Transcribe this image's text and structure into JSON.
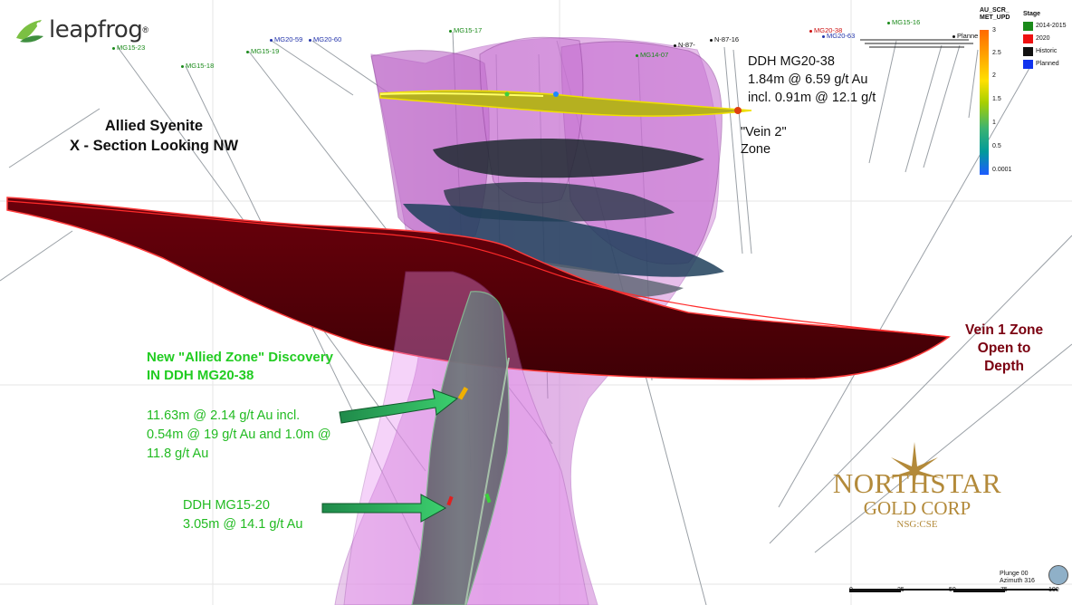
{
  "logo": {
    "text": "leapfrog"
  },
  "title": {
    "line1": "Allied Syenite",
    "line2": "X - Section Looking NW"
  },
  "callouts": {
    "ddh_top": [
      "DDH MG20-38",
      "1.84m @ 6.59 g/t Au",
      "incl. 0.91m @ 12.1 g/t"
    ],
    "vein2": [
      "\"Vein 2\"",
      "Zone"
    ],
    "vein1": [
      "Vein 1 Zone",
      "Open to",
      "Depth"
    ],
    "allied": [
      "New \"Allied Zone\" Discovery",
      "IN DDH MG20-38"
    ],
    "result1": [
      "11.63m @ 2.14 g/t Au incl.",
      "0.54m @ 19 g/t Au and 1.0m @",
      "11.8 g/t Au"
    ],
    "result2": [
      "DDH MG15-20",
      "3.05m @ 14.1 g/t Au"
    ]
  },
  "drillholes": [
    {
      "label": "MG15-23",
      "color": "green"
    },
    {
      "label": "MG20-59",
      "color": "blue"
    },
    {
      "label": "MG20-60",
      "color": "blue"
    },
    {
      "label": "MG15-17",
      "color": "green"
    },
    {
      "label": "MG15-19",
      "color": "green"
    },
    {
      "label": "MG15-18",
      "color": "green"
    },
    {
      "label": "MG14-07",
      "color": "green"
    },
    {
      "label": "N-87-16",
      "color": "black"
    },
    {
      "label": "N-87-",
      "color": "black"
    },
    {
      "label": "MG20-38",
      "color": "red"
    },
    {
      "label": "MG20-63",
      "color": "blue"
    },
    {
      "label": "MG15-16",
      "color": "green"
    },
    {
      "label": "Planne",
      "color": "black"
    }
  ],
  "legend": {
    "grade_title": [
      "AU_SCR_",
      "MET_UPD"
    ],
    "grade_ticks": [
      "3",
      "2.5",
      "2",
      "1.5",
      "1",
      "0.5",
      "0.0001"
    ],
    "stage_title": "Stage",
    "stages": [
      {
        "label": "2014-2015",
        "color": "#1a8a1a"
      },
      {
        "label": "2020",
        "color": "#ee1111"
      },
      {
        "label": "Historic",
        "color": "#111111"
      },
      {
        "label": "Planned",
        "color": "#1133ee"
      }
    ]
  },
  "company": {
    "name1": "NORTHSTAR",
    "name2": "GOLD CORP",
    "ticker": "NSG:CSE",
    "color": "#b38a3a"
  },
  "view": {
    "plunge": "Plunge 00",
    "azimuth": "Azimuth 316"
  },
  "scale": {
    "ticks": [
      "0",
      "25",
      "50",
      "75",
      "100"
    ]
  },
  "colors": {
    "vein1": "#5a0008",
    "syenite": "#c86ad0",
    "allied_zone": "#1f5e2a",
    "arrow": "#2bb35a"
  }
}
